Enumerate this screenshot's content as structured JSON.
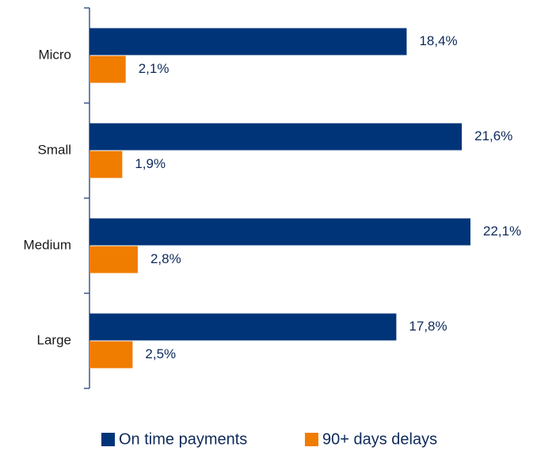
{
  "chart_data": {
    "type": "bar",
    "orientation": "horizontal",
    "categories": [
      "Micro",
      "Small",
      "Medium",
      "Large"
    ],
    "series": [
      {
        "name": "On time payments",
        "color": "#003478",
        "values": [
          18.4,
          21.6,
          22.1,
          17.8
        ],
        "value_labels": [
          "18,4%",
          "21,6%",
          "22,1%",
          "17,8%"
        ]
      },
      {
        "name": "90+ days delays",
        "color": "#f07c00",
        "values": [
          2.1,
          1.9,
          2.8,
          2.5
        ],
        "value_labels": [
          "2,1%",
          "1,9%",
          "2,8%",
          "2,5%"
        ]
      }
    ],
    "legend": "bottom"
  }
}
